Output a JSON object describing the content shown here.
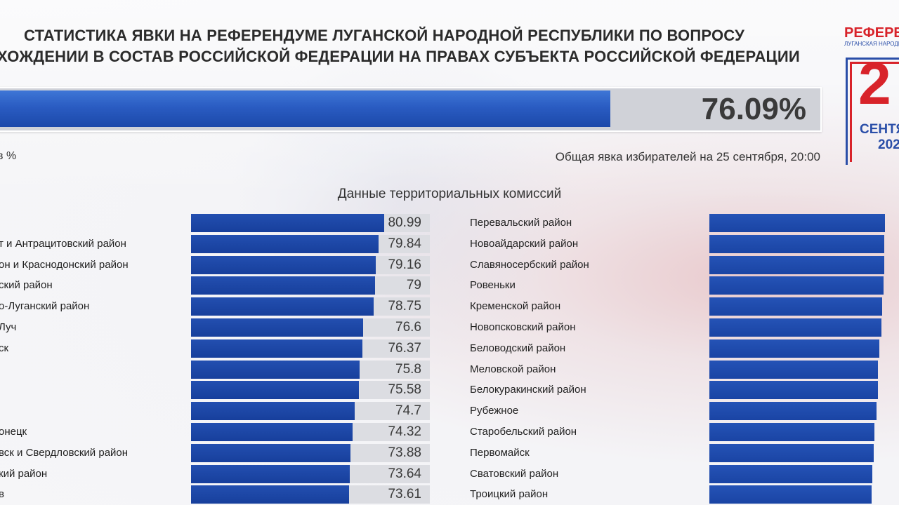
{
  "header": {
    "title_line1": "СТАТИСТИКА ЯВКИ НА РЕФЕРЕНДУМЕ ЛУГАНСКОЙ НАРОДНОЙ РЕСПУБЛИКИ ПО ВОПРОСУ",
    "title_line2": "ХОЖДЕНИИ В СОСТАВ РОССИЙСКОЙ ФЕДЕРАЦИИ НА ПРАВАХ СУБЪЕКТА РОССИЙСКОЙ ФЕДЕРАЦИИ"
  },
  "total": {
    "value": 76.09,
    "label": "76.09%"
  },
  "unit_note": "в %",
  "general_turnout": "Общая явка избирателей на 25 сентября, 20:00",
  "logo": {
    "word": "РЕФЕРЕ",
    "small": "ЛУГАНСКАЯ НАРОДН",
    "number": "2",
    "month": "СЕНТЯ",
    "year": "202"
  },
  "colors": {
    "bar": "#1a44a4",
    "track": "#dcdde2",
    "accent_red": "#d8232a"
  },
  "chart_data": {
    "type": "bar",
    "title": "Данные территориальных комиссий",
    "xlim": [
      0,
      100
    ],
    "left": {
      "categories": [
        "",
        "т и Антрацитовский район",
        "он и Краснодонский район",
        "ский район",
        "о-Луганский район",
        "Луч",
        "ск",
        "",
        "",
        "",
        "онецк",
        "вск и Свердловский район",
        "кий район",
        "в"
      ],
      "values": [
        "80.99",
        "79.84",
        "79.16",
        "79",
        "78.75",
        "76.6",
        "76.37",
        "75.8",
        "75.58",
        "74.7",
        "74.32",
        "73.88",
        "73.64",
        "73.61"
      ]
    },
    "right": {
      "categories": [
        "Перевальский район",
        "Новоайдарский район",
        "Славяносербский район",
        "Ровеньки",
        "Кременской район",
        "Новопсковский район",
        "Беловодский район",
        "Меловской район",
        "Белокуракинский район",
        "Рубежное",
        "Старобельский район",
        "Первомайск",
        "Сватовский район",
        "Троицкий район"
      ],
      "values": [
        73.5,
        73.4,
        73.3,
        73.2,
        73.0,
        72.8,
        72.4,
        72.2,
        72.1,
        71.9,
        71.5,
        71.3,
        71.1,
        70.9
      ]
    }
  }
}
